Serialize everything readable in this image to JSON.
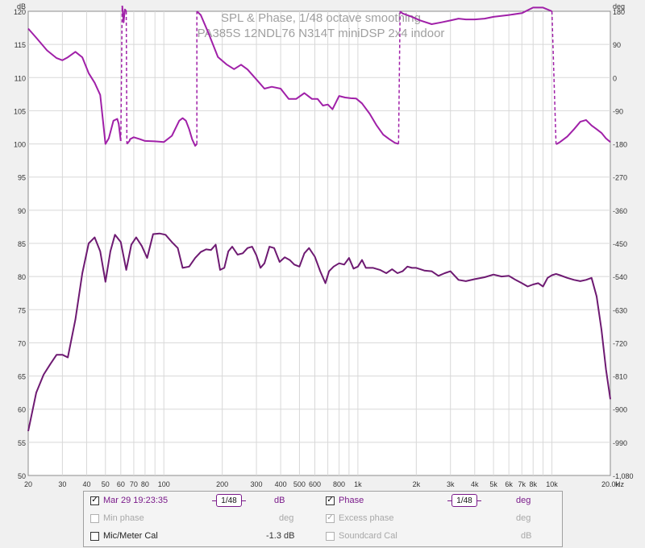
{
  "chart_data": {
    "type": "line",
    "title": "SPL & Phase, 1/48 octave smoothing",
    "subtitle": "PA385S 12NDL76 N314T miniDSP 2x4 indoor",
    "xlabel": "Hz",
    "ylabel": "dB",
    "y2label": "deg",
    "xscale": "log",
    "xlim": [
      20,
      20000
    ],
    "ylim": [
      50,
      120
    ],
    "y2lim": [
      -1080,
      180
    ],
    "xticks": [
      {
        "v": 20,
        "label": "20"
      },
      {
        "v": 30,
        "label": "30"
      },
      {
        "v": 40,
        "label": "40"
      },
      {
        "v": 50,
        "label": "50"
      },
      {
        "v": 60,
        "label": "60"
      },
      {
        "v": 70,
        "label": "70"
      },
      {
        "v": 80,
        "label": "80"
      },
      {
        "v": 100,
        "label": "100"
      },
      {
        "v": 200,
        "label": "200"
      },
      {
        "v": 300,
        "label": "300"
      },
      {
        "v": 400,
        "label": "400"
      },
      {
        "v": 500,
        "label": "500"
      },
      {
        "v": 600,
        "label": "600"
      },
      {
        "v": 800,
        "label": "800"
      },
      {
        "v": 1000,
        "label": "1k"
      },
      {
        "v": 2000,
        "label": "2k"
      },
      {
        "v": 3000,
        "label": "3k"
      },
      {
        "v": 4000,
        "label": "4k"
      },
      {
        "v": 5000,
        "label": "5k"
      },
      {
        "v": 6000,
        "label": "6k"
      },
      {
        "v": 7000,
        "label": "7k"
      },
      {
        "v": 8000,
        "label": "8k"
      },
      {
        "v": 10000,
        "label": "10k"
      },
      {
        "v": 20000,
        "label": "20.0k"
      }
    ],
    "yticks": [
      {
        "v": 120,
        "label": "120"
      },
      {
        "v": 115,
        "label": "115"
      },
      {
        "v": 110,
        "label": "110"
      },
      {
        "v": 105,
        "label": "105"
      },
      {
        "v": 100,
        "label": "100"
      },
      {
        "v": 95,
        "label": "95"
      },
      {
        "v": 90,
        "label": "90"
      },
      {
        "v": 85,
        "label": "85"
      },
      {
        "v": 80,
        "label": "80"
      },
      {
        "v": 75,
        "label": "75"
      },
      {
        "v": 70,
        "label": "70"
      },
      {
        "v": 65,
        "label": "65"
      },
      {
        "v": 60,
        "label": "60"
      },
      {
        "v": 55,
        "label": "55"
      },
      {
        "v": 50,
        "label": "50"
      }
    ],
    "y2ticks": [
      {
        "v": 180,
        "label": "180"
      },
      {
        "v": 90,
        "label": "90"
      },
      {
        "v": 0,
        "label": "0"
      },
      {
        "v": -90,
        "label": "-90"
      },
      {
        "v": -180,
        "label": "-180"
      },
      {
        "v": -270,
        "label": "-270"
      },
      {
        "v": -360,
        "label": "-360"
      },
      {
        "v": -450,
        "label": "-450"
      },
      {
        "v": -540,
        "label": "-540"
      },
      {
        "v": -630,
        "label": "-630"
      },
      {
        "v": -720,
        "label": "-720"
      },
      {
        "v": -810,
        "label": "-810"
      },
      {
        "v": -900,
        "label": "-900"
      },
      {
        "v": -990,
        "label": "-990"
      },
      {
        "v": -1080,
        "label": "-1,080"
      }
    ],
    "grid": true,
    "series": [
      {
        "name": "Mar 29 19:23:35",
        "axis": "left",
        "color": "#6e1a72",
        "x": [
          20,
          22,
          24,
          26,
          28,
          30,
          32,
          35,
          38,
          41,
          44,
          47,
          50,
          53,
          56,
          60,
          64,
          68,
          72,
          77,
          82,
          88,
          95,
          102,
          110,
          118,
          125,
          135,
          145,
          155,
          165,
          175,
          185,
          195,
          205,
          215,
          225,
          240,
          255,
          270,
          285,
          300,
          315,
          330,
          350,
          370,
          395,
          420,
          445,
          470,
          500,
          530,
          560,
          600,
          640,
          680,
          710,
          750,
          800,
          850,
          900,
          950,
          1000,
          1050,
          1100,
          1200,
          1300,
          1400,
          1500,
          1600,
          1700,
          1800,
          1900,
          2000,
          2200,
          2400,
          2600,
          2800,
          3000,
          3300,
          3600,
          4000,
          4500,
          5000,
          5500,
          6000,
          6500,
          7000,
          7500,
          8000,
          8500,
          9000,
          9500,
          10000,
          10500,
          11000,
          12000,
          13000,
          14000,
          15000,
          16000,
          17000,
          18000,
          19000,
          20000
        ],
        "values": [
          56.7,
          62.5,
          65.2,
          66.8,
          68.2,
          68.2,
          67.8,
          73.5,
          80.5,
          85.0,
          85.9,
          83.8,
          79.2,
          83.8,
          86.3,
          85.2,
          81.0,
          84.8,
          85.9,
          84.6,
          82.8,
          86.4,
          86.5,
          86.3,
          85.2,
          84.3,
          81.3,
          81.5,
          82.8,
          83.7,
          84.1,
          84.0,
          84.8,
          81.0,
          81.3,
          83.8,
          84.5,
          83.3,
          83.5,
          84.3,
          84.5,
          83.2,
          81.3,
          82.0,
          84.5,
          84.3,
          82.2,
          82.9,
          82.5,
          81.8,
          81.5,
          83.5,
          84.3,
          83.0,
          80.8,
          79.0,
          80.8,
          81.5,
          82.0,
          81.8,
          82.8,
          81.2,
          81.5,
          82.5,
          81.3,
          81.3,
          81.0,
          80.5,
          81.1,
          80.5,
          80.8,
          81.5,
          81.3,
          81.3,
          80.9,
          80.8,
          80.1,
          80.5,
          80.8,
          79.5,
          79.3,
          79.6,
          79.9,
          80.3,
          80.0,
          80.1,
          79.5,
          79.0,
          78.5,
          78.8,
          79.0,
          78.5,
          79.8,
          80.2,
          80.4,
          80.2,
          79.8,
          79.5,
          79.3,
          79.5,
          79.8,
          77.0,
          72.0,
          66.0,
          61.5
        ]
      },
      {
        "name": "Phase",
        "axis": "right",
        "color": "#a020a8",
        "x": [
          20,
          22,
          25,
          28,
          30,
          32,
          35,
          38,
          41,
          44,
          47,
          50,
          52,
          55,
          57.5,
          58.5,
          60,
          61,
          62,
          63,
          64,
          64.5,
          66.5,
          67,
          70,
          75,
          80,
          90,
          100,
          110,
          120,
          125,
          130,
          135,
          140,
          145,
          148,
          148,
          155,
          170,
          190,
          210,
          230,
          250,
          270,
          300,
          330,
          360,
          400,
          440,
          480,
          530,
          580,
          620,
          660,
          700,
          740,
          800,
          860,
          920,
          980,
          1050,
          1150,
          1250,
          1350,
          1450,
          1550,
          1620,
          1650,
          1700,
          1900,
          2100,
          2400,
          2700,
          3000,
          3300,
          3600,
          4000,
          4500,
          5000,
          6000,
          7000,
          8000,
          9000,
          10000,
          10500,
          10600,
          11000,
          12000,
          13000,
          14000,
          15000,
          16000,
          17000,
          18000,
          19000,
          20000
        ],
        "values": [
          133,
          108,
          74,
          53,
          47,
          55,
          70,
          55,
          12,
          -14,
          -47,
          -180,
          -165,
          -117,
          -112,
          -125,
          -172,
          195,
          150,
          185,
          180,
          -180,
          -172,
          -167,
          -162,
          -167,
          -172,
          -173,
          -175,
          -158,
          -117,
          -110,
          -117,
          -140,
          -168,
          -185,
          -180,
          180,
          170,
          120,
          56,
          36,
          23,
          35,
          22,
          -5,
          -30,
          -25,
          -30,
          -58,
          -58,
          -42,
          -58,
          -58,
          -76,
          -73,
          -86,
          -50,
          -54,
          -56,
          -57,
          -70,
          -98,
          -130,
          -155,
          -167,
          -177,
          -180,
          180,
          174,
          165,
          155,
          145,
          150,
          155,
          160,
          158,
          158,
          160,
          165,
          170,
          175,
          190,
          190,
          180,
          -180,
          -180,
          -175,
          -160,
          -140,
          -120,
          -115,
          -130,
          -140,
          -150,
          -165,
          -175
        ]
      }
    ]
  },
  "legend": {
    "row1": {
      "spl_name": "Mar 29 19:23:35",
      "spl_smooth": "1/48",
      "spl_unit": "dB",
      "phase_name": "Phase",
      "phase_smooth": "1/48",
      "phase_unit": "deg"
    },
    "row2": {
      "min_phase": "Min phase",
      "min_phase_unit": "deg",
      "excess_phase": "Excess phase",
      "excess_phase_unit": "deg"
    },
    "row3": {
      "mic_cal": "Mic/Meter Cal",
      "mic_cal_value": "-1.3 dB",
      "soundcard_cal": "Soundcard Cal",
      "soundcard_cal_unit": "dB"
    }
  }
}
